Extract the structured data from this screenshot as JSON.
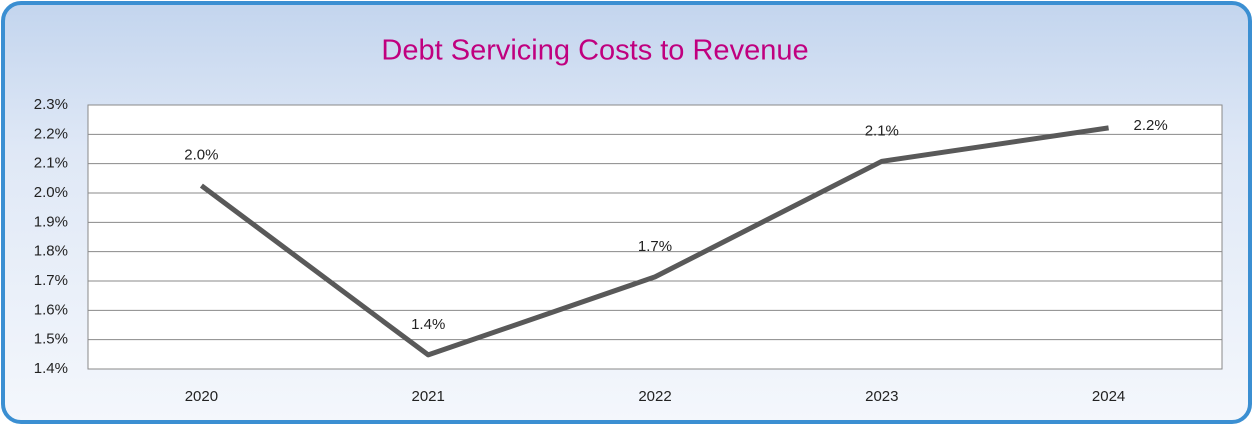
{
  "chart_data": {
    "type": "line",
    "title": "Debt Servicing Costs to Revenue",
    "categories": [
      "2020",
      "2021",
      "2022",
      "2023",
      "2024"
    ],
    "series": [
      {
        "name": "Debt Servicing Costs to Revenue",
        "color": "#595959",
        "values": [
          2.025,
          1.448,
          1.714,
          2.108,
          2.222
        ],
        "value_labels": [
          "2.0%",
          "1.4%",
          "1.7%",
          "2.1%",
          "2.2%"
        ]
      }
    ],
    "ylim": [
      1.4,
      2.3
    ],
    "yticks": [
      {
        "value": 1.4,
        "label": "1.4%"
      },
      {
        "value": 1.5,
        "label": "1.5%"
      },
      {
        "value": 1.6,
        "label": "1.6%"
      },
      {
        "value": 1.7,
        "label": "1.7%"
      },
      {
        "value": 1.8,
        "label": "1.8%"
      },
      {
        "value": 1.9,
        "label": "1.9%"
      },
      {
        "value": 2.0,
        "label": "2.0%"
      },
      {
        "value": 2.1,
        "label": "2.1%"
      },
      {
        "value": 2.2,
        "label": "2.2%"
      },
      {
        "value": 2.3,
        "label": "2.3%"
      }
    ],
    "grid": true
  }
}
